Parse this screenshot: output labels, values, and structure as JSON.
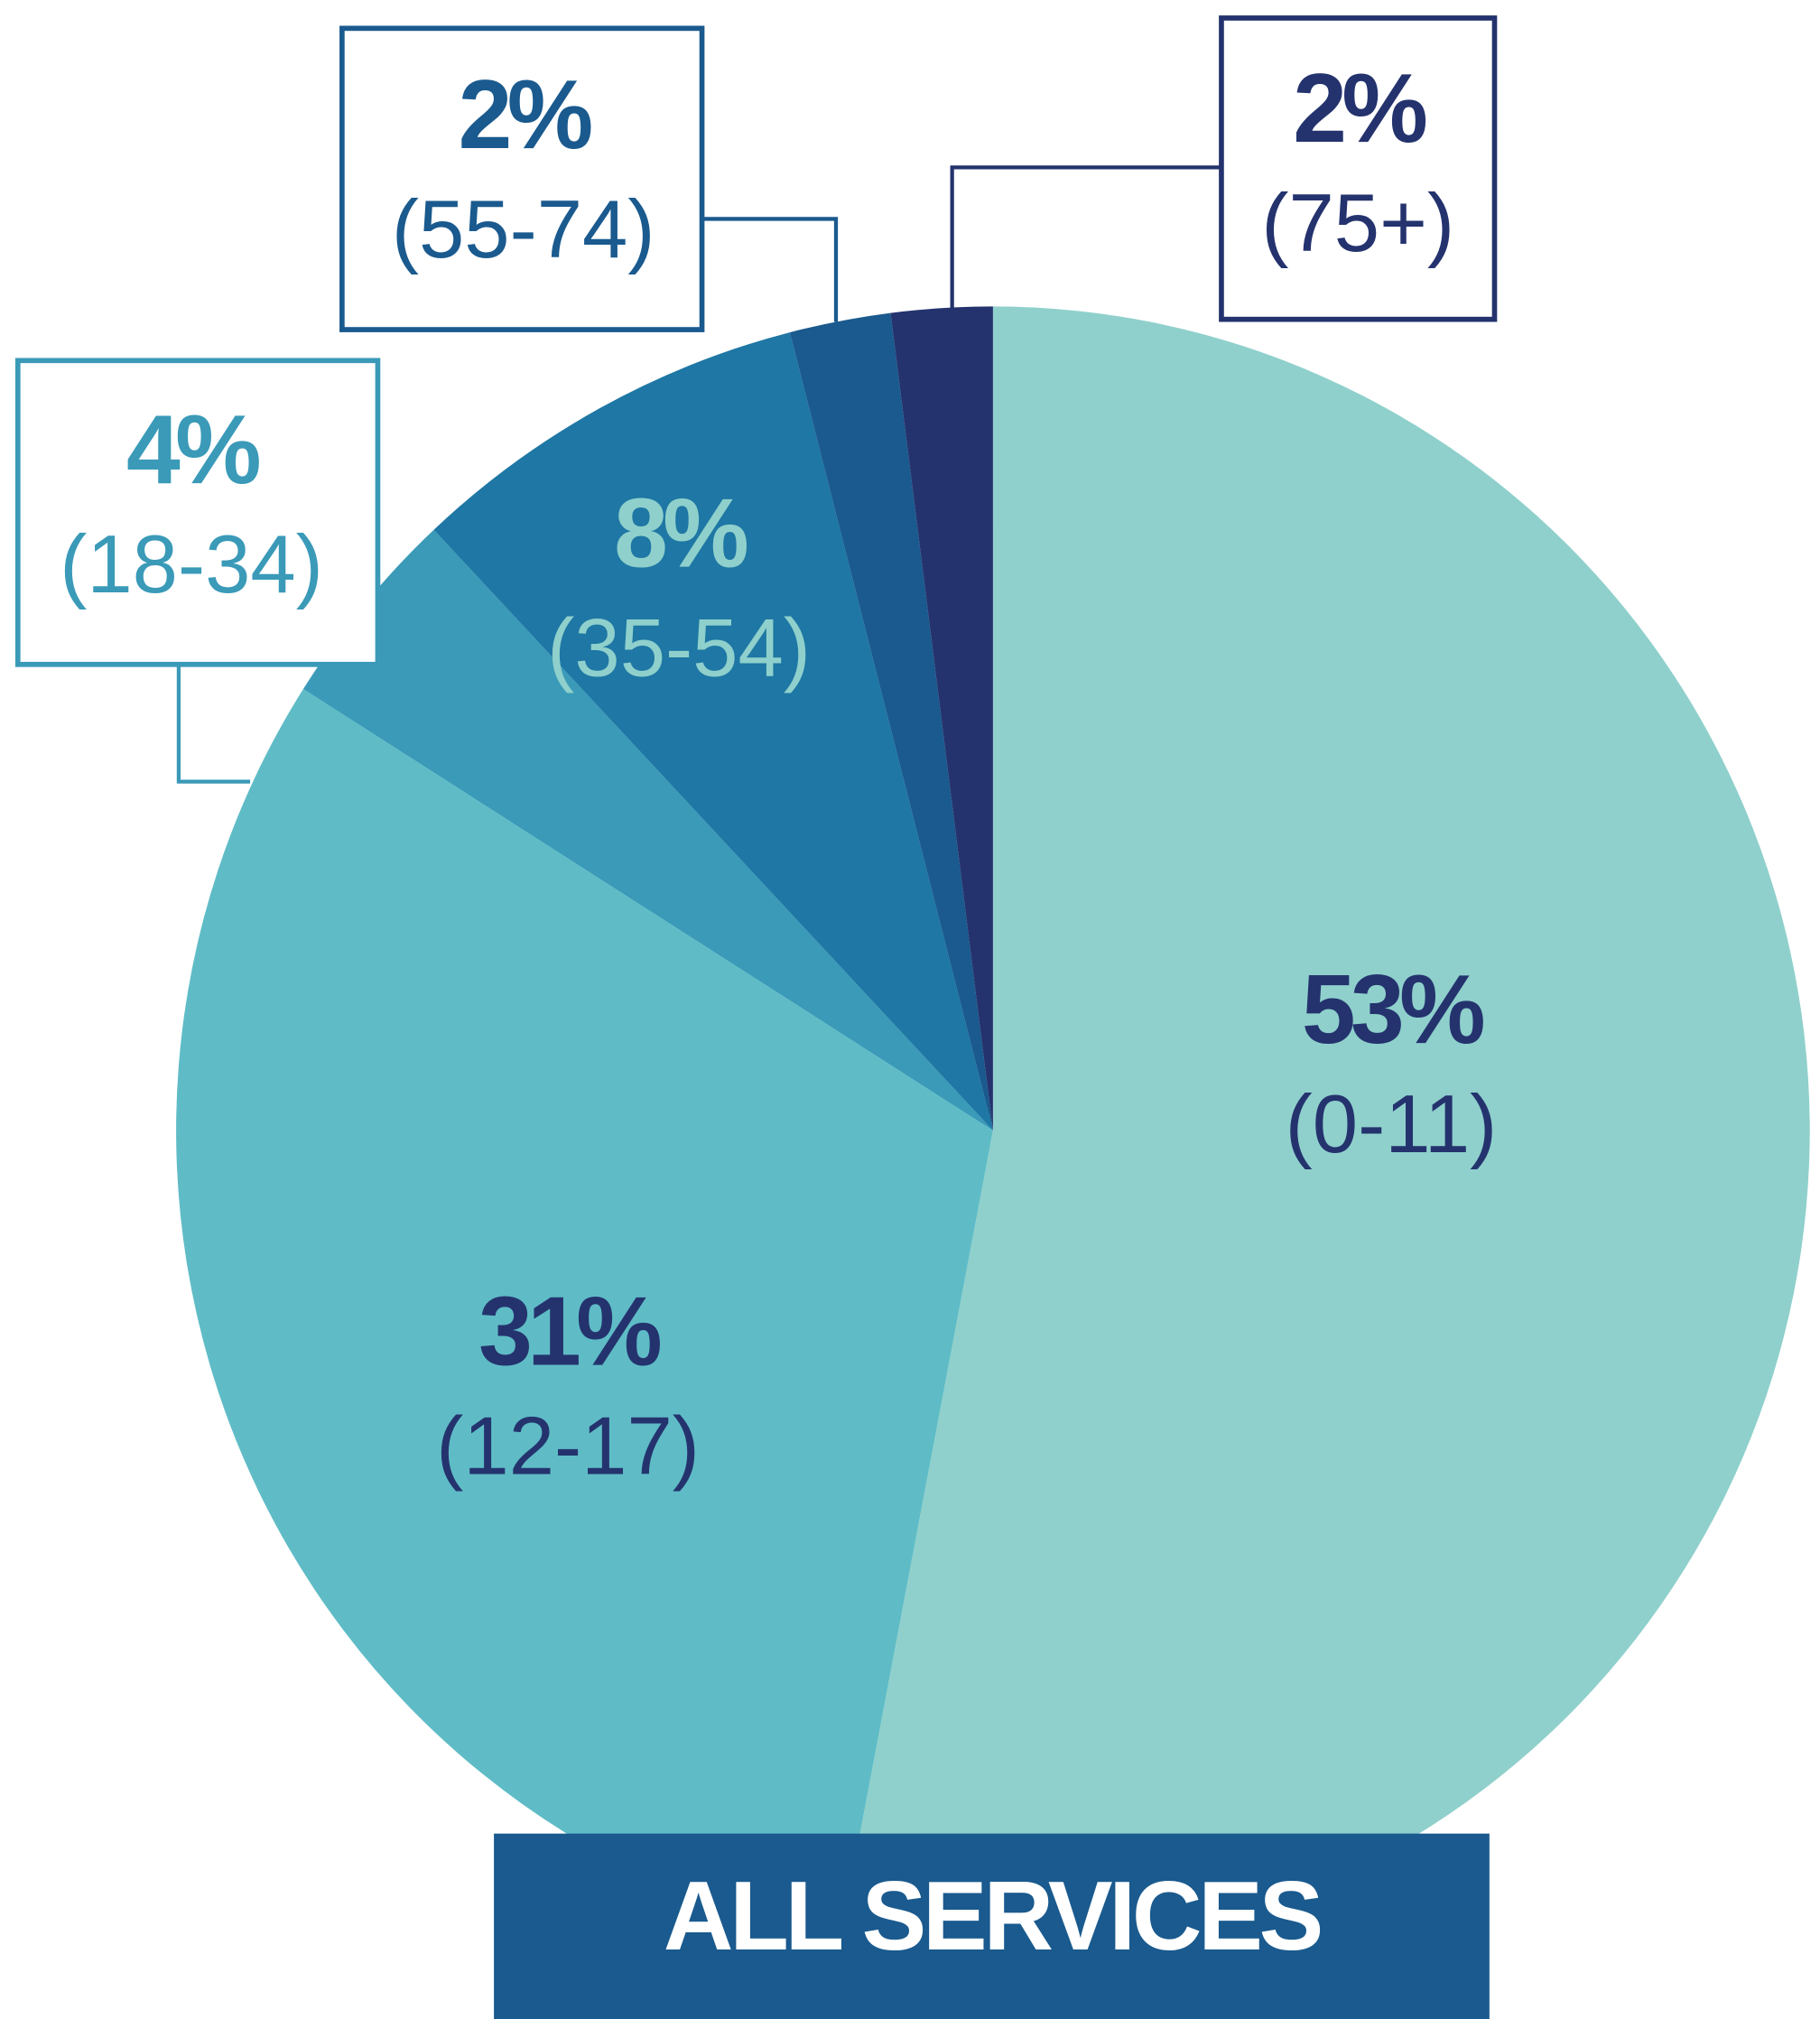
{
  "chart_data": {
    "type": "pie",
    "title": "ALL SERVICES",
    "categories": [
      "(0-11)",
      "(12-17)",
      "(18-34)",
      "(35-54)",
      "(55-74)",
      "(75+)"
    ],
    "values": [
      53,
      31,
      4,
      8,
      2,
      2
    ],
    "value_labels": [
      "53%",
      "31%",
      "4%",
      "8%",
      "2%",
      "2%"
    ],
    "colors": [
      "#8fd0cc",
      "#5fbcc6",
      "#3a9ab8",
      "#1e77a4",
      "#1a5a8e",
      "#24336e"
    ]
  }
}
